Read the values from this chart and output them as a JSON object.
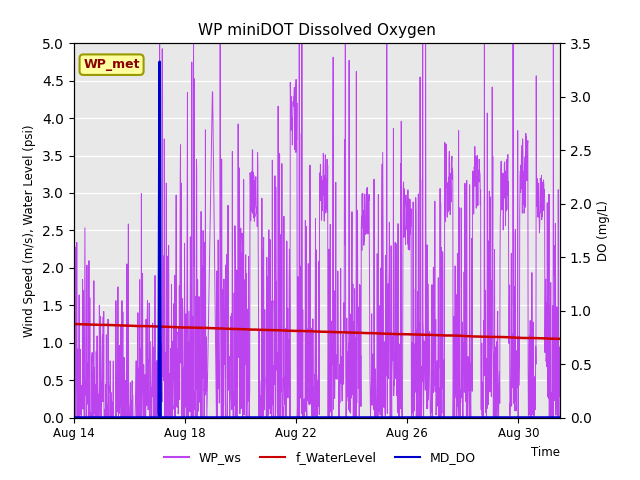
{
  "title": "WP miniDOT Dissolved Oxygen",
  "ylabel_left": "Wind Speed (m/s), Water Level (psi)",
  "ylabel_right": "DO (mg/L)",
  "xlabel": "Time",
  "ylim_left": [
    0,
    5.0
  ],
  "ylim_right": [
    0.0,
    3.5
  ],
  "n_days": 17.5,
  "xtick_labels": [
    "Aug 14",
    "Aug 18",
    "Aug 22",
    "Aug 26",
    "Aug 30"
  ],
  "xtick_positions": [
    0,
    4,
    8,
    12,
    16
  ],
  "legend_entries": [
    "WP_ws",
    "f_WaterLevel",
    "MD_DO"
  ],
  "legend_colors": [
    "#bb44ee",
    "#cc0000",
    "#0000cc"
  ],
  "annotation_box_text": "WP_met",
  "annotation_box_color": "#ffffa0",
  "annotation_box_edge_color": "#999900",
  "annotation_text_color": "#880000",
  "background_color": "#e8e8e8",
  "fig_bg_color": "#ffffff",
  "wp_ws_color": "#bb44ee",
  "f_waterlevel_color": "#cc0000",
  "md_do_color": "#0000cc",
  "wp_ws_linewidth": 0.7,
  "f_waterlevel_linewidth": 1.8,
  "md_do_linewidth": 2.0,
  "ytick_left": [
    0.0,
    0.5,
    1.0,
    1.5,
    2.0,
    2.5,
    3.0,
    3.5,
    4.0,
    4.5,
    5.0
  ],
  "ytick_right": [
    0.0,
    0.5,
    1.0,
    1.5,
    2.0,
    2.5,
    3.0,
    3.5
  ]
}
